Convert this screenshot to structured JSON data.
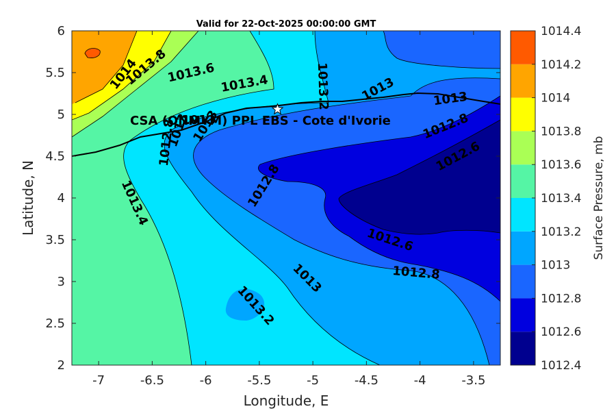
{
  "chart_data": {
    "type": "contourf",
    "title": "Valid for 22-Oct-2025 00:00:00 GMT",
    "xlabel": "Longitude, E",
    "ylabel": "Latitude, N",
    "xlim": [
      -7.25,
      -3.25
    ],
    "ylim": [
      2,
      6
    ],
    "xticks": [
      -7,
      -6.5,
      -6,
      -5.5,
      -5,
      -4.5,
      -4,
      -3.5
    ],
    "xtick_labels": [
      "-7",
      "-6.5",
      "-6",
      "-5.5",
      "-5",
      "-4.5",
      "-4",
      "-3.5"
    ],
    "yticks": [
      2,
      2.5,
      3,
      3.5,
      4,
      4.5,
      5,
      5.5,
      6
    ],
    "ytick_labels": [
      "2",
      "2.5",
      "3",
      "3.5",
      "4",
      "4.5",
      "5",
      "5.5",
      "6"
    ],
    "colorbar": {
      "label": "Surface Pressure, mb",
      "levels": [
        1012.4,
        1012.6,
        1012.8,
        1013,
        1013.2,
        1013.4,
        1013.6,
        1013.8,
        1014,
        1014.2,
        1014.4
      ],
      "tick_labels": [
        "1012.4",
        "1012.6",
        "1012.8",
        "1013",
        "1013.2",
        "1013.4",
        "1013.6",
        "1013.8",
        "1014",
        "1014.2",
        "1014.4"
      ],
      "colors": [
        "#00008f",
        "#0000df",
        "#1a66ff",
        "#00a6ff",
        "#00e5ff",
        "#55f5a5",
        "#aaff55",
        "#ffff00",
        "#ffa500",
        "#ff5a00",
        "#ff0000"
      ]
    },
    "contour_labels": [
      "1014",
      "1013.8",
      "1013.6",
      "1013.4",
      "1013.2",
      "1013",
      "1013",
      "1013",
      "1012.8",
      "1013.4",
      "1012.8",
      "1012.6",
      "1012.8",
      "1012.6",
      "1013",
      "1013.2",
      "1012.8",
      "1013",
      "1013"
    ],
    "station": {
      "name": "CSA (ONMYM) PPL EBS  - Cote d'Ivorie",
      "lon": -5.33,
      "lat": 5.06,
      "marker": "star"
    }
  }
}
